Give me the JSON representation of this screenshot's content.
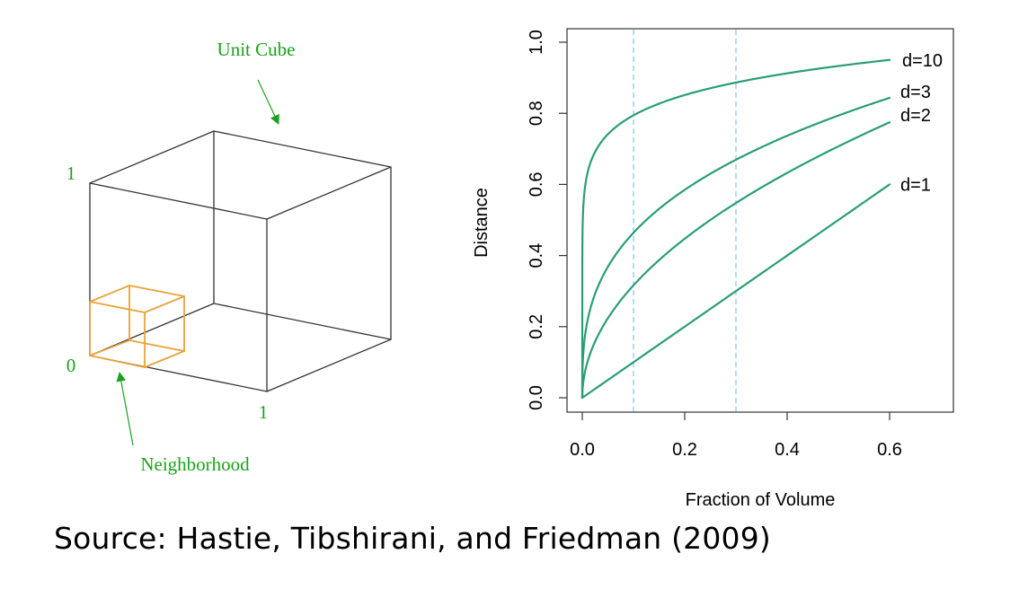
{
  "diagram": {
    "unit_cube_label": "Unit Cube",
    "neighborhood_label": "Neighborhood",
    "axis_label_one_vertical": "1",
    "axis_label_zero": "0",
    "axis_label_one_horizontal": "1",
    "label_color": "#1aa31a",
    "cube_color": "#333333",
    "neighborhood_color": "#e8a33b"
  },
  "chart_data": {
    "type": "line",
    "title": "",
    "xlabel": "Fraction of Volume",
    "ylabel": "Distance",
    "xlim": [
      -0.03,
      0.73
    ],
    "ylim": [
      -0.04,
      1.04
    ],
    "x_ticks": [
      0.0,
      0.2,
      0.4,
      0.6
    ],
    "x_tick_labels": [
      "0.0",
      "0.2",
      "0.4",
      "0.6"
    ],
    "y_ticks": [
      0.0,
      0.2,
      0.4,
      0.6,
      0.8,
      1.0
    ],
    "y_tick_labels": [
      "0.0",
      "0.2",
      "0.4",
      "0.6",
      "0.8",
      "1.0"
    ],
    "grid": false,
    "function": "distance = fraction ^ (1/d)",
    "reference_lines_x": [
      0.1,
      0.3
    ],
    "line_color": "#2a9d78",
    "reference_color": "#8fc8e8",
    "series": [
      {
        "name": "d=10",
        "d": 10,
        "x": [
          0,
          0.001,
          0.005,
          0.01,
          0.02,
          0.05,
          0.1,
          0.2,
          0.3,
          0.4,
          0.5,
          0.6
        ],
        "values": [
          0,
          0.501,
          0.589,
          0.631,
          0.676,
          0.741,
          0.794,
          0.851,
          0.887,
          0.912,
          0.933,
          0.95
        ]
      },
      {
        "name": "d=3",
        "d": 3,
        "x": [
          0,
          0.001,
          0.005,
          0.01,
          0.02,
          0.05,
          0.1,
          0.2,
          0.3,
          0.4,
          0.5,
          0.6
        ],
        "values": [
          0,
          0.1,
          0.171,
          0.215,
          0.271,
          0.368,
          0.464,
          0.585,
          0.669,
          0.737,
          0.794,
          0.843
        ]
      },
      {
        "name": "d=2",
        "d": 2,
        "x": [
          0,
          0.001,
          0.005,
          0.01,
          0.02,
          0.05,
          0.1,
          0.2,
          0.3,
          0.4,
          0.5,
          0.6
        ],
        "values": [
          0,
          0.032,
          0.071,
          0.1,
          0.141,
          0.224,
          0.316,
          0.447,
          0.548,
          0.632,
          0.707,
          0.775
        ]
      },
      {
        "name": "d=1",
        "d": 1,
        "x": [
          0,
          0.1,
          0.2,
          0.3,
          0.4,
          0.5,
          0.6
        ],
        "values": [
          0,
          0.1,
          0.2,
          0.3,
          0.4,
          0.5,
          0.6
        ]
      }
    ]
  },
  "caption": "Source: Hastie, Tibshirani, and Friedman (2009)"
}
